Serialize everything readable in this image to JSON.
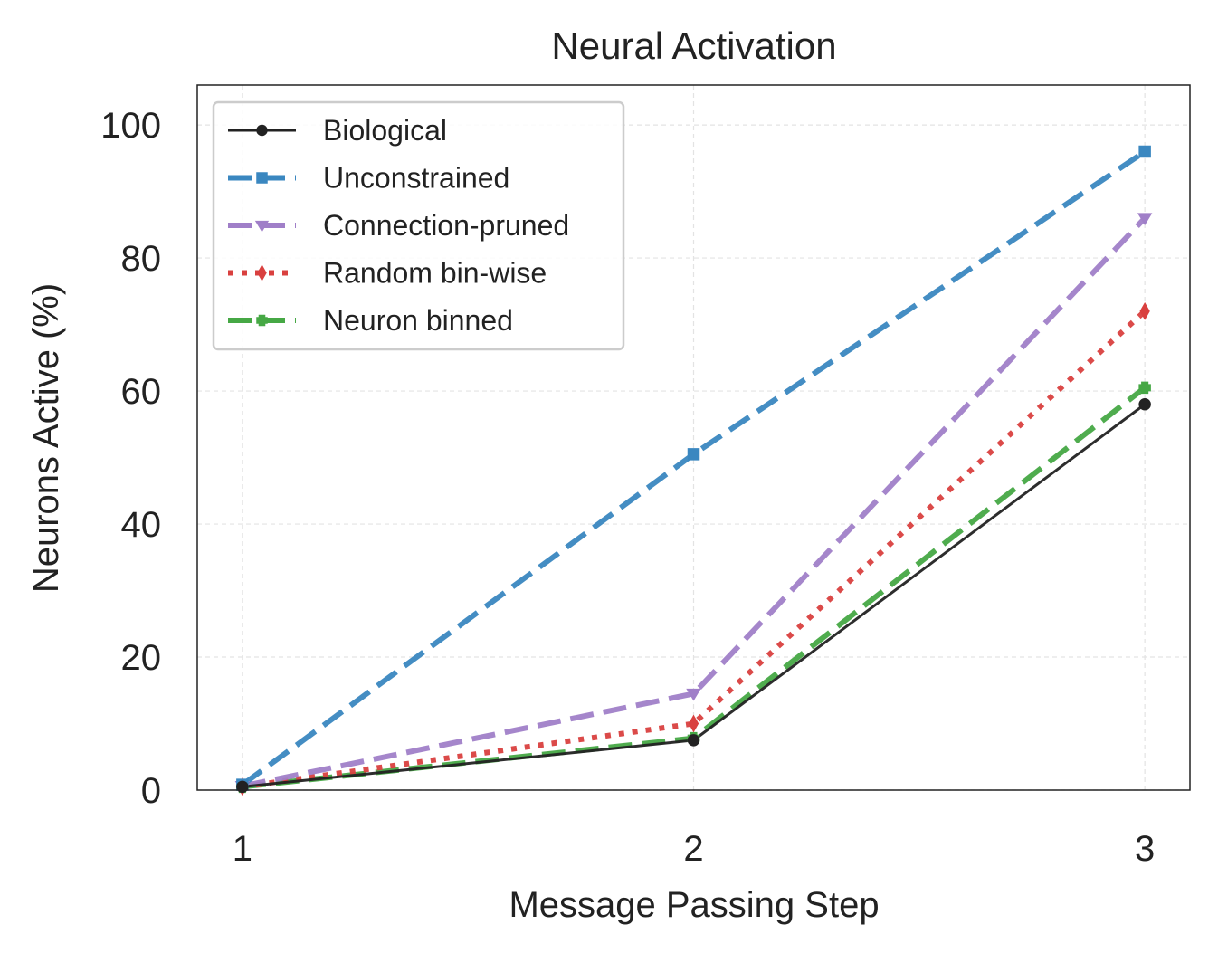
{
  "chart_data": {
    "type": "line",
    "title": "Neural Activation",
    "xlabel": "Message Passing Step",
    "ylabel": "Neurons Active (%)",
    "x": [
      1,
      2,
      3
    ],
    "xticks": [
      "1",
      "2",
      "3"
    ],
    "yticks": [
      "0",
      "20",
      "40",
      "60",
      "80",
      "100"
    ],
    "xlim": [
      0.9,
      3.1
    ],
    "ylim": [
      0,
      106
    ],
    "grid": true,
    "legend_position": "top-left",
    "series": [
      {
        "name": "Biological",
        "values": [
          0.5,
          7.5,
          58
        ],
        "color": "#222222",
        "dash": "solid",
        "marker": "circle"
      },
      {
        "name": "Unconstrained",
        "values": [
          0.8,
          50.5,
          96
        ],
        "color": "#3a87c0",
        "dash": "dashed",
        "marker": "square"
      },
      {
        "name": "Connection-pruned",
        "values": [
          0.6,
          14.5,
          86
        ],
        "color": "#a07fc8",
        "dash": "dashed",
        "marker": "triangle-down"
      },
      {
        "name": "Random bin-wise",
        "values": [
          0.5,
          10,
          72
        ],
        "color": "#d9403f",
        "dash": "dotted",
        "marker": "diamond"
      },
      {
        "name": "Neuron binned",
        "values": [
          0.5,
          7.8,
          60.5
        ],
        "color": "#46a845",
        "dash": "dashed",
        "marker": "plus"
      }
    ]
  }
}
